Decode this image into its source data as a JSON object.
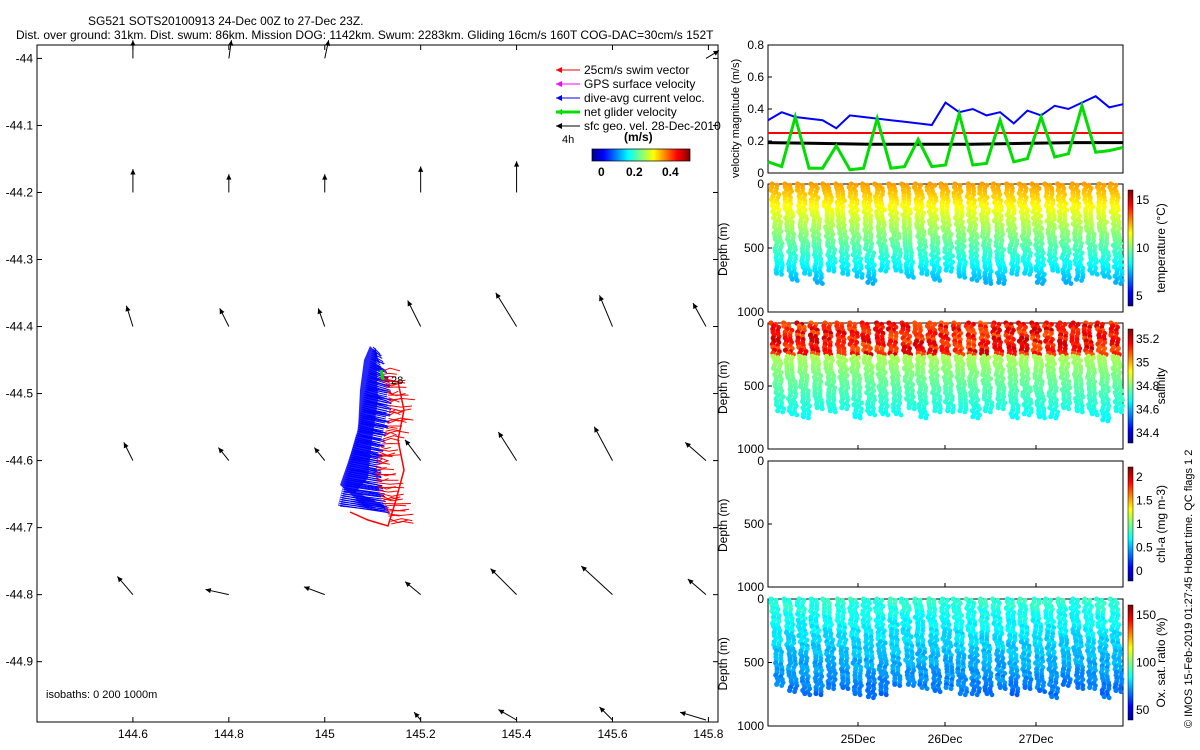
{
  "header": {
    "title": "SG521 SOTS20100913 24-Dec 00Z to 27-Dec 23Z.",
    "subtitle": "Dist. over ground: 31km. Dist. swum: 86km. Mission DOG: 1142km. Swum: 2283km. Gliding 16cm/s 160T COG-DAC=30cm/s 152T"
  },
  "chart_data": [
    {
      "id": "map",
      "type": "map",
      "xlim": [
        144.4,
        145.82
      ],
      "ylim": [
        -44.99,
        -43.98
      ],
      "xticks": [
        "144.6",
        "144.8",
        "145",
        "145.2",
        "145.4",
        "145.6",
        "145.8"
      ],
      "yticks": [
        "-44",
        "-44.1",
        "-44.2",
        "-44.3",
        "-44.4",
        "-44.5",
        "-44.6",
        "-44.7",
        "-44.8",
        "-44.9"
      ],
      "legend": [
        "25cm/s swim vector",
        "GPS surface velocity",
        "dive-avg current veloc.",
        "net glider velocity",
        "sfc geo. vel. 28-Dec-2010"
      ],
      "legend_colors": [
        "#ff0000",
        "#ff00ff",
        "#0000ff",
        "#00dd00",
        "#000000"
      ],
      "scale_label": "4h",
      "colorbar": {
        "label": "(m/s)",
        "ticks": [
          "0",
          "0.2",
          "0.4"
        ],
        "range": [
          0,
          0.45
        ]
      },
      "isobaths_label": "isobaths: 0   200   1000m",
      "track_label": "28",
      "geo_vectors": {
        "lon": [
          144.6,
          144.8,
          145.0,
          145.2,
          145.4,
          145.6,
          145.8
        ],
        "lat": [
          -44.0,
          -44.2,
          -44.4,
          -44.6,
          -44.8,
          -45.0
        ],
        "u": [
          [
            0.0,
            0.02,
            0.03,
            0.0,
            0.0,
            0.0,
            0.1
          ],
          [
            0.0,
            0.0,
            0.0,
            0.0,
            0.0,
            0.0,
            0.0
          ],
          [
            -0.05,
            -0.07,
            -0.05,
            -0.1,
            -0.16,
            -0.1,
            -0.1
          ],
          [
            -0.07,
            -0.08,
            -0.08,
            -0.12,
            -0.14,
            -0.14,
            -0.16
          ],
          [
            -0.12,
            -0.18,
            -0.16,
            -0.12,
            -0.2,
            -0.24,
            -0.14
          ],
          [
            0.0,
            0.0,
            0.0,
            -0.05,
            -0.14,
            -0.1,
            -0.2
          ]
        ],
        "v": [
          [
            0.14,
            0.14,
            0.14,
            0.0,
            0.0,
            0.0,
            0.06
          ],
          [
            0.18,
            0.14,
            0.14,
            0.2,
            0.24,
            0.0,
            0.0
          ],
          [
            0.16,
            0.14,
            0.14,
            0.2,
            0.26,
            0.24,
            0.18
          ],
          [
            0.14,
            0.1,
            0.1,
            0.16,
            0.22,
            0.26,
            0.14
          ],
          [
            0.14,
            0.04,
            0.06,
            0.1,
            0.2,
            0.22,
            0.12
          ],
          [
            0.0,
            0.0,
            0.0,
            0.06,
            0.08,
            0.1,
            0.06
          ]
        ]
      }
    },
    {
      "id": "velocity",
      "type": "line",
      "ylabel": "velocity magnitude (m/s)",
      "ylim": [
        0,
        0.8
      ],
      "yticks": [
        "0",
        "0.2",
        "0.4",
        "0.6",
        "0.8"
      ],
      "series": [
        {
          "name": "dive-avg current",
          "color": "#0000ff",
          "values": [
            0.33,
            0.38,
            0.35,
            0.34,
            0.33,
            0.28,
            0.36,
            0.35,
            0.34,
            0.33,
            0.32,
            0.31,
            0.3,
            0.44,
            0.38,
            0.4,
            0.36,
            0.38,
            0.31,
            0.39,
            0.36,
            0.42,
            0.4,
            0.44,
            0.48,
            0.41,
            0.43
          ]
        },
        {
          "name": "25cm/s swim",
          "color": "#ff0000",
          "values": [
            0.25,
            0.25
          ]
        },
        {
          "name": "geo velocity",
          "color": "#000000",
          "values": [
            0.19,
            0.185,
            0.18,
            0.18,
            0.18,
            0.185,
            0.19,
            0.19
          ]
        },
        {
          "name": "net glider",
          "color": "#00dd00",
          "values": [
            0.07,
            0.04,
            0.35,
            0.03,
            0.03,
            0.17,
            0.02,
            0.03,
            0.34,
            0.03,
            0.04,
            0.21,
            0.04,
            0.05,
            0.37,
            0.05,
            0.06,
            0.33,
            0.07,
            0.09,
            0.35,
            0.1,
            0.12,
            0.42,
            0.13,
            0.14,
            0.16
          ]
        }
      ]
    },
    {
      "id": "temperature",
      "type": "section",
      "ylabel": "Depth (m)",
      "cbar_label": "temperature (°C)",
      "cbar_ticks": [
        "5",
        "10",
        "15"
      ],
      "ylim": [
        1000,
        0
      ],
      "yticks": [
        "0",
        "500",
        "1000"
      ],
      "n_dives": 27,
      "depth_min": [
        0,
        0
      ],
      "depth_max": [
        700,
        800
      ]
    },
    {
      "id": "salinity",
      "type": "section",
      "ylabel": "Depth (m)",
      "cbar_label": "salinity",
      "cbar_ticks": [
        "34.4",
        "34.6",
        "34.8",
        "35",
        "35.2"
      ],
      "ylim": [
        1000,
        0
      ],
      "yticks": [
        "0",
        "500",
        "1000"
      ],
      "n_dives": 27
    },
    {
      "id": "chla",
      "type": "section",
      "ylabel": "Depth (m)",
      "cbar_label": "chl-a (mg m-3)",
      "cbar_ticks": [
        "0",
        "0.5",
        "1",
        "1.5",
        "2"
      ],
      "ylim": [
        1000,
        0
      ],
      "yticks": [
        "0",
        "500",
        "1000"
      ],
      "n_dives": 0
    },
    {
      "id": "oxygen",
      "type": "section",
      "ylabel": "Depth (m)",
      "cbar_label": "Ox. sat. ratio (%)",
      "cbar_ticks": [
        "50",
        "100",
        "150"
      ],
      "ylim": [
        1000,
        0
      ],
      "yticks": [
        "0",
        "500",
        "1000"
      ],
      "xticks": [
        "25Dec",
        "26Dec",
        "27Dec"
      ],
      "n_dives": 27
    }
  ],
  "footer": {
    "credit": "© IMOS 15-Feb-2019 01:27:45 Hobart time. QC flags 1  2"
  }
}
